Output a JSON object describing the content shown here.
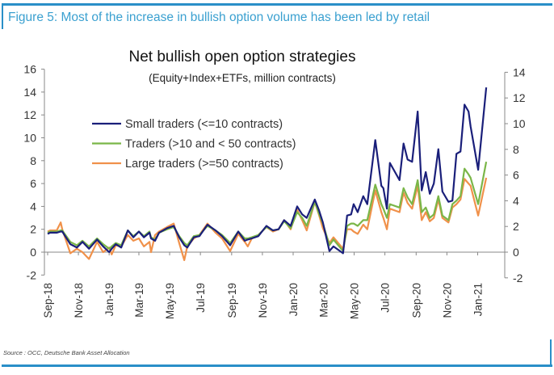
{
  "figure_title": "Figure 5: Most of the increase in bullish option volume has been led by retail",
  "source": "Source : OCC, Deutsche Bank Asset Allocation",
  "chart_data": {
    "type": "line",
    "title": "Net bullish open option strategies",
    "subtitle": "(Equity+Index+ETFs, million contracts)",
    "xlabel": "",
    "ylabel": "",
    "ylim_left": [
      -2,
      16
    ],
    "yticks_left": [
      -2,
      0,
      2,
      4,
      6,
      8,
      10,
      12,
      14,
      16
    ],
    "ylim_right": [
      -2,
      14
    ],
    "yticks_right": [
      -2,
      0,
      2,
      4,
      6,
      8,
      10,
      12,
      14
    ],
    "xticks": [
      {
        "label": "Sep-18",
        "date": "2018-09-01"
      },
      {
        "label": "Nov-18",
        "date": "2018-11-01"
      },
      {
        "label": "Jan-19",
        "date": "2019-01-01"
      },
      {
        "label": "Mar-19",
        "date": "2019-03-01"
      },
      {
        "label": "May-19",
        "date": "2019-05-01"
      },
      {
        "label": "Jul-19",
        "date": "2019-07-01"
      },
      {
        "label": "Sep-19",
        "date": "2019-09-01"
      },
      {
        "label": "Nov-19",
        "date": "2019-11-01"
      },
      {
        "label": "Jan-20",
        "date": "2020-01-01"
      },
      {
        "label": "Mar-20",
        "date": "2020-03-01"
      },
      {
        "label": "May-20",
        "date": "2020-05-01"
      },
      {
        "label": "Jul-20",
        "date": "2020-07-01"
      },
      {
        "label": "Sep-20",
        "date": "2020-09-01"
      },
      {
        "label": "Nov-20",
        "date": "2020-11-01"
      },
      {
        "label": "Jan-21",
        "date": "2021-01-01"
      }
    ],
    "grid": false,
    "legend_position": "top-left",
    "x": [
      "2018-09-01",
      "2018-09-06",
      "2018-09-19",
      "2018-09-27",
      "2018-09-30",
      "2018-10-16",
      "2018-10-29",
      "2018-11-09",
      "2018-11-22",
      "2018-12-08",
      "2018-12-20",
      "2019-01-01",
      "2019-01-06",
      "2019-01-14",
      "2019-01-25",
      "2019-02-07",
      "2019-02-18",
      "2019-03-01",
      "2019-03-11",
      "2019-03-22",
      "2019-03-25",
      "2019-04-02",
      "2019-04-10",
      "2019-04-26",
      "2019-05-09",
      "2019-05-20",
      "2019-05-30",
      "2019-06-05",
      "2019-06-18",
      "2019-06-29",
      "2019-07-15",
      "2019-07-31",
      "2019-08-13",
      "2019-08-29",
      "2019-09-14",
      "2019-09-27",
      "2019-10-03",
      "2019-10-11",
      "2019-10-24",
      "2019-11-09",
      "2019-11-22",
      "2019-12-03",
      "2019-12-14",
      "2019-12-27",
      "2020-01-09",
      "2020-01-19",
      "2020-01-28",
      "2020-02-13",
      "2020-02-21",
      "2020-02-29",
      "2020-03-13",
      "2020-03-21",
      "2020-04-09",
      "2020-04-17",
      "2020-04-25",
      "2020-04-30",
      "2020-05-08",
      "2020-05-19",
      "2020-05-27",
      "2020-06-12",
      "2020-06-24",
      "2020-06-28",
      "2020-07-05",
      "2020-07-11",
      "2020-07-30",
      "2020-08-07",
      "2020-08-15",
      "2020-08-24",
      "2020-09-04",
      "2020-09-12",
      "2020-09-20",
      "2020-09-28",
      "2020-10-06",
      "2020-10-15",
      "2020-10-23",
      "2020-11-04",
      "2020-11-12",
      "2020-11-20",
      "2020-11-28",
      "2020-12-06",
      "2020-12-14",
      "2020-12-18",
      "2021-01-02",
      "2021-01-18"
    ],
    "series": [
      {
        "name": "Small traders (<=10 contracts)",
        "color": "#1a1f7a",
        "values": [
          1.6,
          1.7,
          1.7,
          1.8,
          1.8,
          0.7,
          0.4,
          0.9,
          0.3,
          1.1,
          0.5,
          0.0,
          0.3,
          0.7,
          0.4,
          1.9,
          1.3,
          1.8,
          1.3,
          1.7,
          1.2,
          1.0,
          1.7,
          2.1,
          2.3,
          1.3,
          0.6,
          0.4,
          1.3,
          1.4,
          2.4,
          1.9,
          1.4,
          0.6,
          1.8,
          1.0,
          1.1,
          1.2,
          1.4,
          2.3,
          1.9,
          2.0,
          2.8,
          2.3,
          4.0,
          3.3,
          3.0,
          4.6,
          3.7,
          2.6,
          0.1,
          0.5,
          -0.1,
          3.2,
          3.3,
          4.2,
          3.5,
          4.9,
          4.2,
          9.8,
          5.8,
          5.6,
          3.8,
          7.8,
          6.3,
          9.5,
          8.1,
          7.9,
          12.3,
          5.4,
          7.0,
          5.1,
          6.0,
          9.0,
          5.3,
          4.4,
          4.5,
          8.6,
          8.8,
          12.9,
          12.3,
          11.0,
          7.2,
          14.4
        ]
      },
      {
        "name": "Traders (>10 and < 50 contracts)",
        "color": "#7ab648",
        "values": [
          1.7,
          1.8,
          1.8,
          1.9,
          1.9,
          0.9,
          0.6,
          1.0,
          0.5,
          1.2,
          0.7,
          0.3,
          0.5,
          0.8,
          0.6,
          1.9,
          1.4,
          1.8,
          1.4,
          1.8,
          1.3,
          1.1,
          1.7,
          2.0,
          2.2,
          1.4,
          0.8,
          0.6,
          1.4,
          1.5,
          2.3,
          1.9,
          1.5,
          0.8,
          1.8,
          1.2,
          1.2,
          1.3,
          1.5,
          2.2,
          1.9,
          2.0,
          2.7,
          2.1,
          3.5,
          3.0,
          2.3,
          4.4,
          3.4,
          2.5,
          0.6,
          1.1,
          0.1,
          2.3,
          2.5,
          2.5,
          2.3,
          2.8,
          2.8,
          5.9,
          4.2,
          3.8,
          3.0,
          4.2,
          3.9,
          5.6,
          4.8,
          4.2,
          6.3,
          3.5,
          3.9,
          3.0,
          3.3,
          4.9,
          3.2,
          2.8,
          4.2,
          4.5,
          4.9,
          7.3,
          6.8,
          6.5,
          4.2,
          7.9
        ]
      },
      {
        "name": "Large traders (>=50 contracts)",
        "color": "#f0914a",
        "values": [
          1.8,
          1.9,
          1.9,
          2.6,
          2.0,
          -0.1,
          0.3,
          0.0,
          -0.6,
          0.9,
          0.0,
          0.4,
          -0.2,
          0.6,
          0.5,
          1.5,
          1.0,
          1.2,
          0.5,
          0.9,
          0.0,
          1.5,
          1.8,
          2.2,
          2.5,
          0.8,
          -0.7,
          0.5,
          1.2,
          1.5,
          2.5,
          1.7,
          1.2,
          0.1,
          1.6,
          0.9,
          0.5,
          1.2,
          1.5,
          2.2,
          1.8,
          2.0,
          2.8,
          2.0,
          3.7,
          2.8,
          1.9,
          4.4,
          3.3,
          2.1,
          0.8,
          1.3,
          0.3,
          2.0,
          2.0,
          1.8,
          1.6,
          2.4,
          2.0,
          5.4,
          3.5,
          3.0,
          2.0,
          3.8,
          3.5,
          5.2,
          4.3,
          3.8,
          5.8,
          2.8,
          3.5,
          2.7,
          3.0,
          4.6,
          3.0,
          2.6,
          3.9,
          4.2,
          4.6,
          6.4,
          6.0,
          5.8,
          3.2,
          6.5
        ]
      }
    ]
  }
}
